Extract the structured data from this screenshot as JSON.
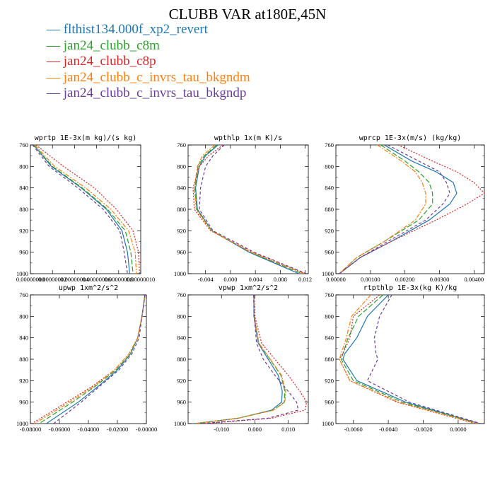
{
  "figure": {
    "title": "CLUBB VAR at180E,45N",
    "legend": [
      {
        "name": "flthist134.000f_xp2_revert",
        "color": "#1f77b4",
        "dash": "solid"
      },
      {
        "name": "jan24_clubb_c8m",
        "color": "#2ca02c",
        "dash": "longdash"
      },
      {
        "name": "jan24_clubb_c8p",
        "color": "#d62728",
        "dash": "dotted"
      },
      {
        "name": "jan24_clubb_c_invrs_tau_bkgndm",
        "color": "#ff7f0e",
        "dash": "dashdot"
      },
      {
        "name": "jan24_clubb_c_invrs_tau_bkgndp",
        "color": "#6a3d9a",
        "dash": "dash"
      }
    ]
  },
  "chart_data": [
    {
      "type": "line",
      "title": "wprtp  1E-3x(m kg)/(s kg)",
      "xlim": [
        0.0,
        1e-07
      ],
      "ylim": [
        760,
        1000
      ],
      "y_inverted": true,
      "yticks": [
        "760",
        "800",
        "840",
        "880",
        "920",
        "960",
        "1000"
      ],
      "xticks": [
        "0.00000000",
        "0.00000002",
        "0.00000004",
        "0.00000006",
        "0.00000008",
        "0.00000010"
      ],
      "y": [
        760,
        800,
        840,
        880,
        920,
        960,
        1000
      ],
      "series": [
        {
          "name": "flthist134.000f_xp2_revert",
          "values": [
            3e-09,
            1.9e-08,
            4.6e-08,
            6.9e-08,
            8.3e-08,
            8.8e-08,
            9e-08
          ]
        },
        {
          "name": "jan24_clubb_c8m",
          "values": [
            3e-09,
            2e-08,
            4.7e-08,
            7e-08,
            8.6e-08,
            9.1e-08,
            9.3e-08
          ]
        },
        {
          "name": "jan24_clubb_c8p",
          "values": [
            5e-09,
            3e-08,
            5.8e-08,
            7.8e-08,
            9.3e-08,
            9.8e-08,
            9.9e-08
          ]
        },
        {
          "name": "jan24_clubb_c_invrs_tau_bkgndm",
          "values": [
            4e-09,
            2.2e-08,
            5e-08,
            7.3e-08,
            8.9e-08,
            9.5e-08,
            9.6e-08
          ]
        },
        {
          "name": "jan24_clubb_c_invrs_tau_bkgndp",
          "values": [
            2e-09,
            1.7e-08,
            4.3e-08,
            6.6e-08,
            8.1e-08,
            8.5e-08,
            8.8e-08
          ]
        }
      ]
    },
    {
      "type": "line",
      "title": "wpthlp  1x(m K)/s",
      "xlim": [
        -0.0068,
        0.0125
      ],
      "ylim": [
        760,
        1000
      ],
      "y_inverted": true,
      "yticks": [
        "760",
        "800",
        "840",
        "880",
        "920",
        "960",
        "1000"
      ],
      "xticks": [
        "-0.004",
        "0.000",
        "0.004",
        "0.008",
        "0.012"
      ],
      "y": [
        760,
        780,
        800,
        840,
        880,
        920,
        960,
        1000
      ],
      "series": [
        {
          "name": "flthist134.000f_xp2_revert",
          "values": [
            -0.002,
            -0.004,
            -0.005,
            -0.0056,
            -0.0053,
            -0.003,
            0.003,
            0.011
          ]
        },
        {
          "name": "jan24_clubb_c8m",
          "values": [
            -0.0022,
            -0.0042,
            -0.0052,
            -0.0057,
            -0.0054,
            -0.003,
            0.0032,
            0.0115
          ]
        },
        {
          "name": "jan24_clubb_c8p",
          "values": [
            -0.0012,
            -0.0035,
            -0.005,
            -0.006,
            -0.0058,
            -0.0032,
            0.0035,
            0.012
          ]
        },
        {
          "name": "jan24_clubb_c_invrs_tau_bkgndm",
          "values": [
            -0.0025,
            -0.0045,
            -0.0053,
            -0.0058,
            -0.0055,
            -0.0031,
            0.0033,
            0.0118
          ]
        },
        {
          "name": "jan24_clubb_c_invrs_tau_bkgndp",
          "values": [
            -0.001,
            -0.0028,
            -0.004,
            -0.0048,
            -0.005,
            -0.0028,
            0.0038,
            0.0122
          ]
        }
      ]
    },
    {
      "type": "line",
      "title": "wprcp  1E-3x(m/s) (kg/kg)",
      "xlim": [
        0.0,
        0.0043
      ],
      "ylim": [
        760,
        1000
      ],
      "y_inverted": true,
      "yticks": [
        "760",
        "800",
        "840",
        "880",
        "920",
        "960",
        "1000"
      ],
      "xticks": [
        "0.00000",
        "0.00100",
        "0.00200",
        "0.00300",
        "0.00400"
      ],
      "y": [
        760,
        790,
        810,
        830,
        850,
        870,
        900,
        940,
        970,
        1000
      ],
      "series": [
        {
          "name": "flthist134.000f_xp2_revert",
          "values": [
            0.0014,
            0.0022,
            0.0029,
            0.0034,
            0.0035,
            0.0033,
            0.0027,
            0.0016,
            0.0007,
            0.0001
          ]
        },
        {
          "name": "jan24_clubb_c8m",
          "values": [
            0.0013,
            0.002,
            0.0024,
            0.0027,
            0.0028,
            0.0028,
            0.0024,
            0.0014,
            0.0006,
            0.0001
          ]
        },
        {
          "name": "jan24_clubb_c8p",
          "values": [
            0.0018,
            0.0028,
            0.0035,
            0.004,
            0.0043,
            0.0038,
            0.0029,
            0.0016,
            0.0007,
            0.0001
          ]
        },
        {
          "name": "jan24_clubb_c_invrs_tau_bkgndm",
          "values": [
            0.0012,
            0.0019,
            0.0023,
            0.0025,
            0.0026,
            0.0026,
            0.0023,
            0.0014,
            0.0006,
            0.0001
          ]
        },
        {
          "name": "jan24_clubb_c_invrs_tau_bkgndp",
          "values": [
            0.0015,
            0.0024,
            0.003,
            0.0032,
            0.0033,
            0.0031,
            0.0026,
            0.0015,
            0.0007,
            0.0001
          ]
        }
      ]
    },
    {
      "type": "line",
      "title": "upwp  1xm^2/s^2",
      "xlim": [
        -0.08,
        0.0
      ],
      "ylim": [
        760,
        1000
      ],
      "y_inverted": true,
      "yticks": [
        "760",
        "800",
        "840",
        "880",
        "920",
        "960",
        "1000"
      ],
      "xticks": [
        "-0.08000",
        "-0.06000",
        "-0.04000",
        "-0.02000",
        "-0.00000"
      ],
      "y": [
        760,
        800,
        840,
        870,
        900,
        930,
        960,
        1000
      ],
      "series": [
        {
          "name": "flthist134.000f_xp2_revert",
          "values": [
            -0.001,
            -0.003,
            -0.006,
            -0.011,
            -0.02,
            -0.033,
            -0.047,
            -0.069
          ]
        },
        {
          "name": "jan24_clubb_c8m",
          "values": [
            -0.001,
            -0.003,
            -0.006,
            -0.011,
            -0.021,
            -0.035,
            -0.051,
            -0.074
          ]
        },
        {
          "name": "jan24_clubb_c8p",
          "values": [
            -0.001,
            -0.003,
            -0.006,
            -0.012,
            -0.022,
            -0.037,
            -0.055,
            -0.079
          ]
        },
        {
          "name": "jan24_clubb_c_invrs_tau_bkgndm",
          "values": [
            -0.001,
            -0.003,
            -0.006,
            -0.012,
            -0.022,
            -0.036,
            -0.053,
            -0.077
          ]
        },
        {
          "name": "jan24_clubb_c_invrs_tau_bkgndp",
          "values": [
            -0.001,
            -0.003,
            -0.005,
            -0.01,
            -0.019,
            -0.032,
            -0.045,
            -0.064
          ]
        }
      ]
    },
    {
      "type": "line",
      "title": "vpwp  1xm^2/s^2",
      "xlim": [
        -0.02,
        0.016
      ],
      "ylim": [
        760,
        1000
      ],
      "y_inverted": true,
      "yticks": [
        "760",
        "800",
        "840",
        "880",
        "920",
        "960",
        "1000"
      ],
      "xticks": [
        "-0.010",
        "0.000",
        "0.010"
      ],
      "y": [
        760,
        800,
        850,
        880,
        910,
        940,
        960,
        975,
        990,
        1000
      ],
      "series": [
        {
          "name": "flthist134.000f_xp2_revert",
          "values": [
            -0.0003,
            -0.0003,
            0.001,
            0.004,
            0.007,
            0.0082,
            0.008,
            0.005,
            -0.005,
            -0.018
          ]
        },
        {
          "name": "jan24_clubb_c8m",
          "values": [
            -0.0003,
            -0.0002,
            0.0012,
            0.0045,
            0.0078,
            0.009,
            0.0088,
            0.0055,
            -0.005,
            -0.018
          ]
        },
        {
          "name": "jan24_clubb_c8p",
          "values": [
            -0.0002,
            0.0,
            0.002,
            0.006,
            0.01,
            0.0135,
            0.0155,
            0.015,
            0.005,
            -0.015
          ]
        },
        {
          "name": "jan24_clubb_c_invrs_tau_bkgndm",
          "values": [
            -0.0003,
            -0.0002,
            0.0012,
            0.0046,
            0.008,
            0.0092,
            0.009,
            0.0056,
            -0.005,
            -0.018
          ]
        },
        {
          "name": "jan24_clubb_c_invrs_tau_bkgndp",
          "values": [
            -0.0004,
            -0.0002,
            0.0005,
            0.0025,
            0.006,
            0.01,
            0.0125,
            0.013,
            0.004,
            -0.016
          ]
        }
      ]
    },
    {
      "type": "line",
      "title": "rtpthlp  1E-3x(kg K)/kg",
      "xlim": [
        -0.007,
        0.0015
      ],
      "ylim": [
        760,
        1000
      ],
      "y_inverted": true,
      "yticks": [
        "760",
        "800",
        "840",
        "880",
        "920",
        "960",
        "1000"
      ],
      "xticks": [
        "-0.0060",
        "-0.0040",
        "-0.0020",
        "0.0000"
      ],
      "y": [
        760,
        800,
        840,
        870,
        880,
        920,
        960,
        1000
      ],
      "series": [
        {
          "name": "flthist134.000f_xp2_revert",
          "values": [
            -0.004,
            -0.0052,
            -0.0058,
            -0.0065,
            -0.0066,
            -0.0058,
            -0.003,
            0.0012
          ]
        },
        {
          "name": "jan24_clubb_c8m",
          "values": [
            -0.0043,
            -0.0057,
            -0.0063,
            -0.0066,
            -0.0067,
            -0.006,
            -0.0032,
            0.0012
          ]
        },
        {
          "name": "jan24_clubb_c8p",
          "values": [
            -0.0045,
            -0.006,
            -0.0062,
            -0.0066,
            -0.0068,
            -0.0062,
            -0.0035,
            0.001
          ]
        },
        {
          "name": "jan24_clubb_c_invrs_tau_bkgndm",
          "values": [
            -0.005,
            -0.0061,
            -0.0064,
            -0.0067,
            -0.0068,
            -0.0062,
            -0.0034,
            0.0011
          ]
        },
        {
          "name": "jan24_clubb_c_invrs_tau_bkgndp",
          "values": [
            -0.0038,
            -0.0045,
            -0.0048,
            -0.0047,
            -0.0046,
            -0.0052,
            -0.0028,
            0.0013
          ]
        }
      ]
    }
  ]
}
